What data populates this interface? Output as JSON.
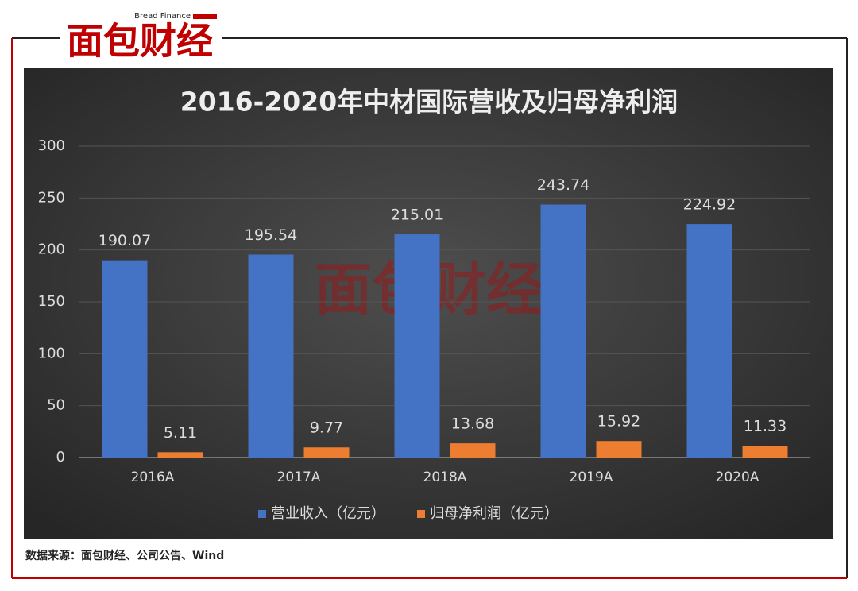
{
  "logo": {
    "brand": "面包财经",
    "brand_en": "Bread Finance"
  },
  "chart_data": {
    "type": "bar",
    "title": "2016-2020年中材国际营收及归母净利润",
    "categories": [
      "2016A",
      "2017A",
      "2018A",
      "2019A",
      "2020A"
    ],
    "series": [
      {
        "name": "营业收入（亿元）",
        "color": "#4472c4",
        "values": [
          190.07,
          195.54,
          215.01,
          243.74,
          224.92
        ]
      },
      {
        "name": "归母净利润（亿元）",
        "color": "#ed7d31",
        "values": [
          5.11,
          9.77,
          13.68,
          15.92,
          11.33
        ]
      }
    ],
    "ylim": [
      0,
      300
    ],
    "yticks": [
      0,
      50,
      100,
      150,
      200,
      250,
      300
    ],
    "grid": true,
    "legend": "bottom"
  },
  "source": "数据来源：面包财经、公司公告、Wind"
}
